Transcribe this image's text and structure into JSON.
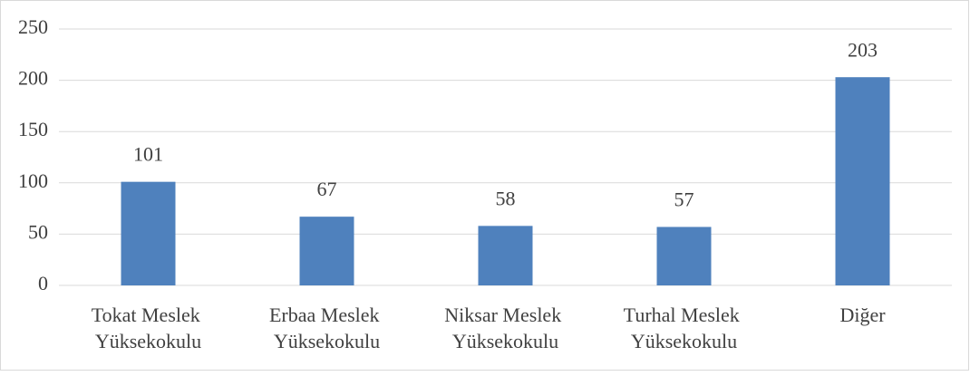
{
  "chart_data": {
    "type": "bar",
    "categories": [
      "Tokat Meslek Yüksekokulu",
      "Erbaa Meslek Yüksekokulu",
      "Niksar Meslek Yüksekokulu",
      "Turhal Meslek Yüksekokulu",
      "Diğer"
    ],
    "values": [
      101,
      67,
      58,
      57,
      203
    ],
    "color": "#4f81bd",
    "ylim": [
      0,
      250
    ],
    "yticks": [
      0,
      50,
      100,
      150,
      200,
      250
    ],
    "grid": true
  }
}
